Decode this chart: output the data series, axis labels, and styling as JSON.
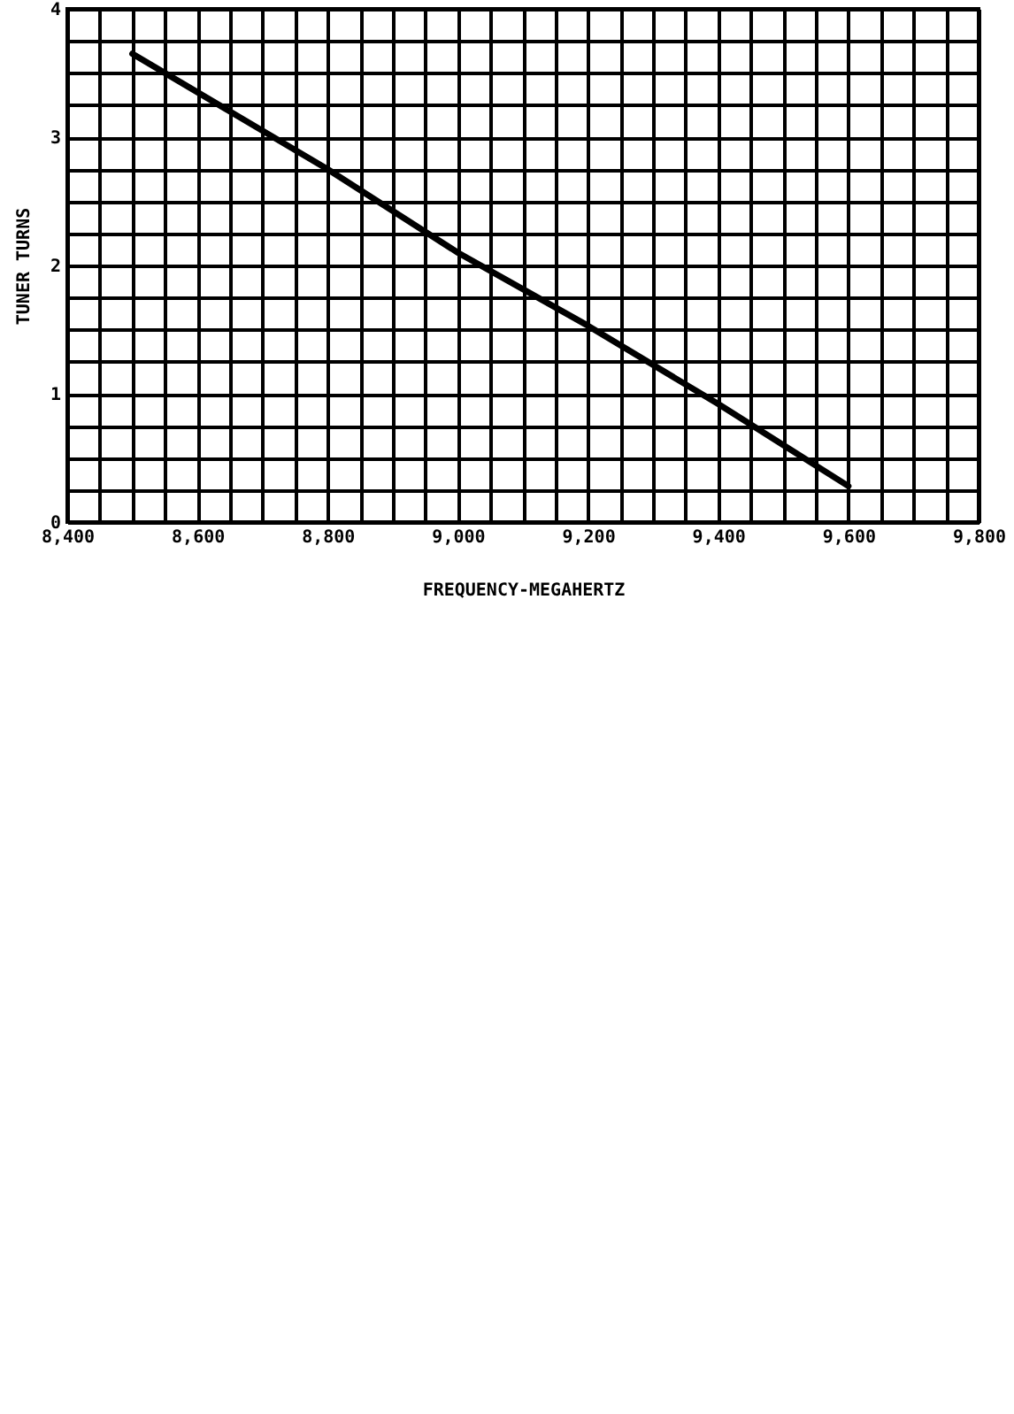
{
  "chart_data": {
    "type": "line",
    "xlabel": "FREQUENCY-MEGAHERTZ",
    "ylabel": "TUNER TURNS",
    "x": [
      8500,
      8800,
      9000,
      9200,
      9400,
      9600
    ],
    "series": [
      {
        "color": "#000000",
        "values": [
          3.65,
          2.75,
          2.1,
          1.53,
          0.92,
          0.28
        ]
      }
    ],
    "xlim": [
      8400,
      9800
    ],
    "xticks": [
      {
        "value": 8400,
        "label": "8,400"
      },
      {
        "value": 8450,
        "label": null
      },
      {
        "value": 8500,
        "label": null
      },
      {
        "value": 8550,
        "label": null
      },
      {
        "value": 8600,
        "label": "8,600"
      },
      {
        "value": 8650,
        "label": null
      },
      {
        "value": 8700,
        "label": null
      },
      {
        "value": 8750,
        "label": null
      },
      {
        "value": 8800,
        "label": "8,800"
      },
      {
        "value": 8850,
        "label": null
      },
      {
        "value": 8900,
        "label": null
      },
      {
        "value": 8950,
        "label": null
      },
      {
        "value": 9000,
        "label": "9,000"
      },
      {
        "value": 9050,
        "label": null
      },
      {
        "value": 9100,
        "label": null
      },
      {
        "value": 9150,
        "label": null
      },
      {
        "value": 9200,
        "label": "9,200"
      },
      {
        "value": 9250,
        "label": null
      },
      {
        "value": 9300,
        "label": null
      },
      {
        "value": 9350,
        "label": null
      },
      {
        "value": 9400,
        "label": "9,400"
      },
      {
        "value": 9450,
        "label": null
      },
      {
        "value": 9500,
        "label": null
      },
      {
        "value": 9550,
        "label": null
      },
      {
        "value": 9600,
        "label": "9,600"
      },
      {
        "value": 9650,
        "label": null
      },
      {
        "value": 9700,
        "label": null
      },
      {
        "value": 9750,
        "label": null
      },
      {
        "value": 9800,
        "label": "9,800"
      }
    ],
    "ylim": [
      0,
      4
    ],
    "yticks": [
      0,
      {
        "value": 0.25,
        "label": null
      },
      {
        "value": 0.5,
        "label": null
      },
      {
        "value": 0.75,
        "label": null
      },
      1,
      {
        "value": 1.25,
        "label": null
      },
      {
        "value": 1.5,
        "label": null
      },
      {
        "value": 1.75,
        "label": null
      },
      2,
      {
        "value": 2.25,
        "label": null
      },
      {
        "value": 2.5,
        "label": null
      },
      {
        "value": 2.75,
        "label": null
      },
      3,
      {
        "value": 3.25,
        "label": null
      },
      {
        "value": 3.5,
        "label": null
      },
      {
        "value": 3.75,
        "label": null
      },
      4
    ],
    "grid": true,
    "line_style": "solid"
  }
}
